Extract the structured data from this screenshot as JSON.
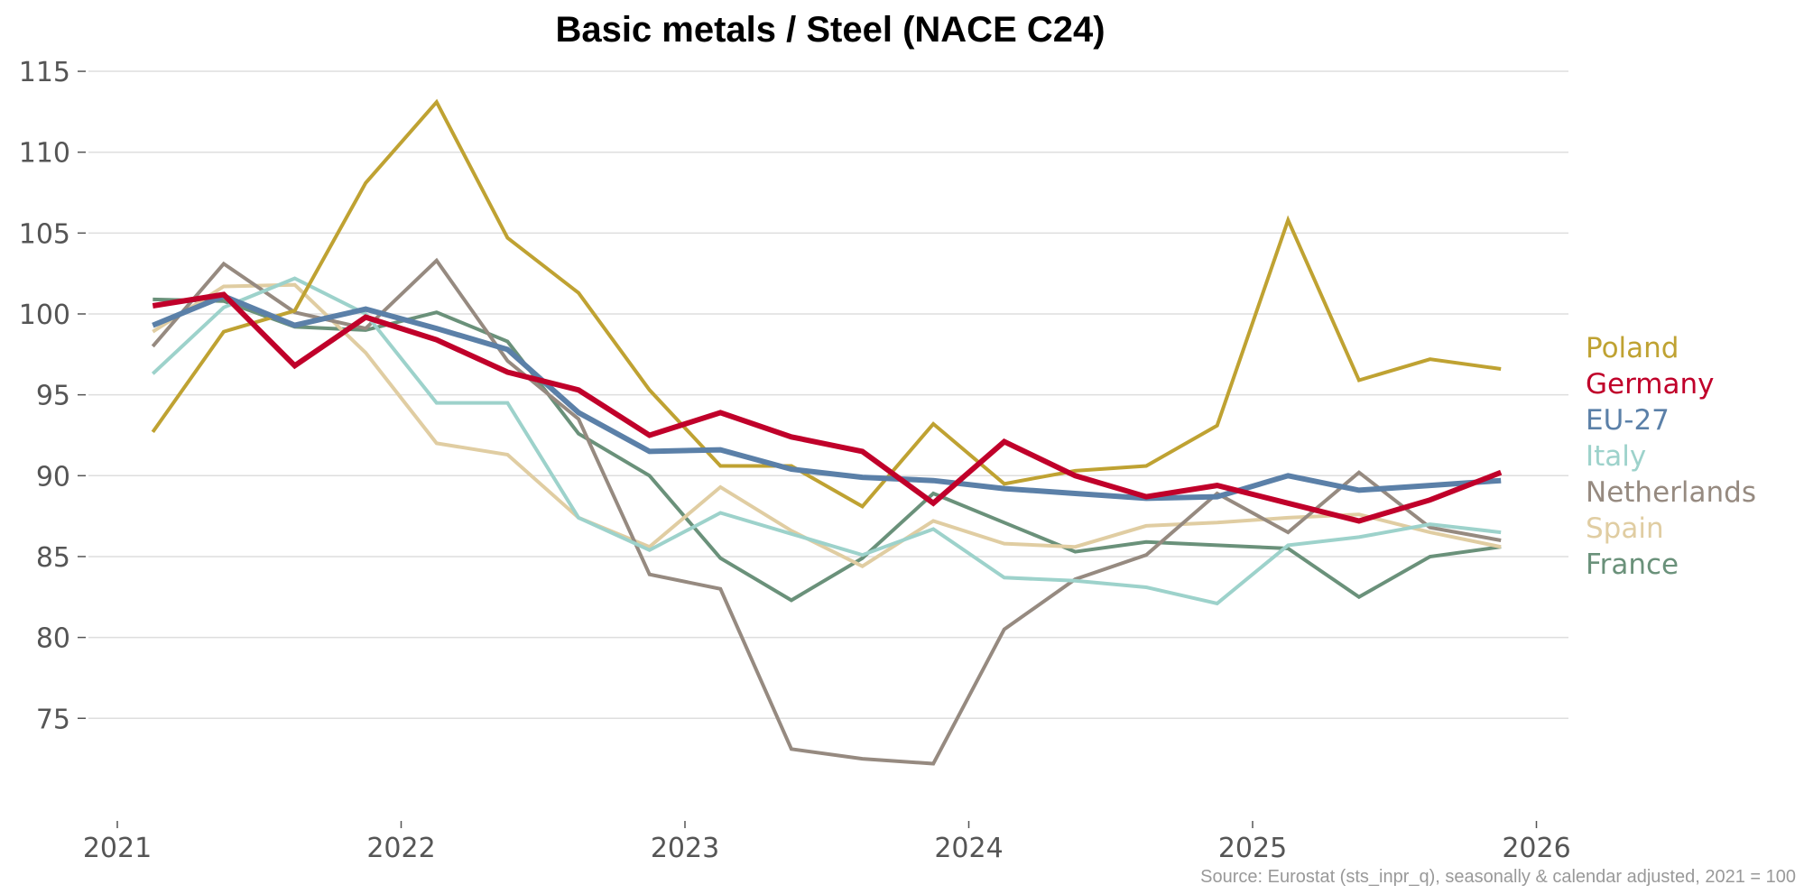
{
  "chart_data": {
    "type": "line",
    "title": "Basic metals / Steel (NACE C24)",
    "xlabel": "",
    "ylabel": "",
    "source": "Source: Eurostat (sts_inpr_q), seasonally & calendar adjusted, 2021 = 100",
    "xlim": [
      2021,
      2026
    ],
    "ylim": [
      70,
      116
    ],
    "x_ticks": [
      2021,
      2022,
      2023,
      2024,
      2025,
      2026
    ],
    "x_tick_labels": [
      "2021",
      "2022",
      "2023",
      "2024",
      "2025",
      "2026"
    ],
    "y_ticks": [
      75,
      80,
      85,
      90,
      95,
      100,
      105,
      110,
      115
    ],
    "y_tick_labels": [
      "75",
      "80",
      "85",
      "90",
      "95",
      "100",
      "105",
      "110",
      "115"
    ],
    "grid": true,
    "legend_placement": "right (direct labels)",
    "x": [
      "2021-Q1",
      "2021-Q2",
      "2021-Q3",
      "2021-Q4",
      "2022-Q1",
      "2022-Q2",
      "2022-Q3",
      "2022-Q4",
      "2023-Q1",
      "2023-Q2",
      "2023-Q3",
      "2023-Q4",
      "2024-Q1",
      "2024-Q2",
      "2024-Q3",
      "2024-Q4",
      "2025-Q1",
      "2025-Q2",
      "2025-Q3",
      "2025-Q4"
    ],
    "x_numeric": [
      2021.125,
      2021.375,
      2021.625,
      2021.875,
      2022.125,
      2022.375,
      2022.625,
      2022.875,
      2023.125,
      2023.375,
      2023.625,
      2023.875,
      2024.125,
      2024.375,
      2024.625,
      2024.875,
      2025.125,
      2025.375,
      2025.625,
      2025.875
    ],
    "series": [
      {
        "name": "France",
        "color": "#6a917a",
        "width": "normal",
        "values": [
          100.9,
          100.8,
          99.2,
          99.0,
          100.1,
          98.3,
          92.6,
          90.0,
          84.9,
          82.3,
          84.9,
          88.9,
          87.1,
          85.3,
          85.9,
          85.7,
          85.5,
          82.5,
          85.0,
          85.6
        ]
      },
      {
        "name": "Spain",
        "color": "#e0cda2",
        "width": "normal",
        "values": [
          98.9,
          101.7,
          101.8,
          97.6,
          92.0,
          91.3,
          87.4,
          85.6,
          89.3,
          86.6,
          84.4,
          87.2,
          85.8,
          85.6,
          86.9,
          87.1,
          87.4,
          87.6,
          86.5,
          85.6
        ]
      },
      {
        "name": "Netherlands",
        "color": "#968a80",
        "width": "normal",
        "values": [
          98.0,
          103.1,
          100.1,
          99.1,
          103.3,
          97.1,
          93.5,
          83.9,
          83.0,
          73.1,
          72.5,
          72.2,
          80.5,
          83.6,
          85.1,
          88.9,
          86.5,
          90.2,
          86.8,
          86.0
        ]
      },
      {
        "name": "Italy",
        "color": "#9dd2cb",
        "width": "normal",
        "values": [
          96.3,
          100.4,
          102.2,
          100.0,
          94.5,
          94.5,
          87.4,
          85.4,
          87.7,
          86.4,
          85.1,
          86.7,
          83.7,
          83.5,
          83.1,
          82.1,
          85.7,
          86.2,
          87.0,
          86.5
        ]
      },
      {
        "name": "Poland",
        "color": "#bfa232",
        "width": "normal",
        "values": [
          92.7,
          98.9,
          100.2,
          108.1,
          113.1,
          104.7,
          101.3,
          95.3,
          90.6,
          90.6,
          88.1,
          93.2,
          89.5,
          90.3,
          90.6,
          93.1,
          105.8,
          95.9,
          97.2,
          96.6
        ]
      },
      {
        "name": "EU-27",
        "color": "#5b80a8",
        "width": "thick",
        "values": [
          99.3,
          101.1,
          99.3,
          100.3,
          99.1,
          97.8,
          93.9,
          91.5,
          91.6,
          90.4,
          89.9,
          89.7,
          89.2,
          88.9,
          88.6,
          88.7,
          90.0,
          89.1,
          89.4,
          89.7
        ]
      },
      {
        "name": "Germany",
        "color": "#c0002a",
        "width": "thick",
        "values": [
          100.5,
          101.2,
          96.8,
          99.8,
          98.4,
          96.4,
          95.3,
          92.5,
          93.9,
          92.4,
          91.5,
          88.3,
          92.1,
          90.0,
          88.7,
          89.4,
          88.3,
          87.2,
          88.5,
          90.2
        ]
      }
    ],
    "legend_order": [
      "Poland",
      "Germany",
      "EU-27",
      "Italy",
      "Netherlands",
      "Spain",
      "France"
    ]
  }
}
